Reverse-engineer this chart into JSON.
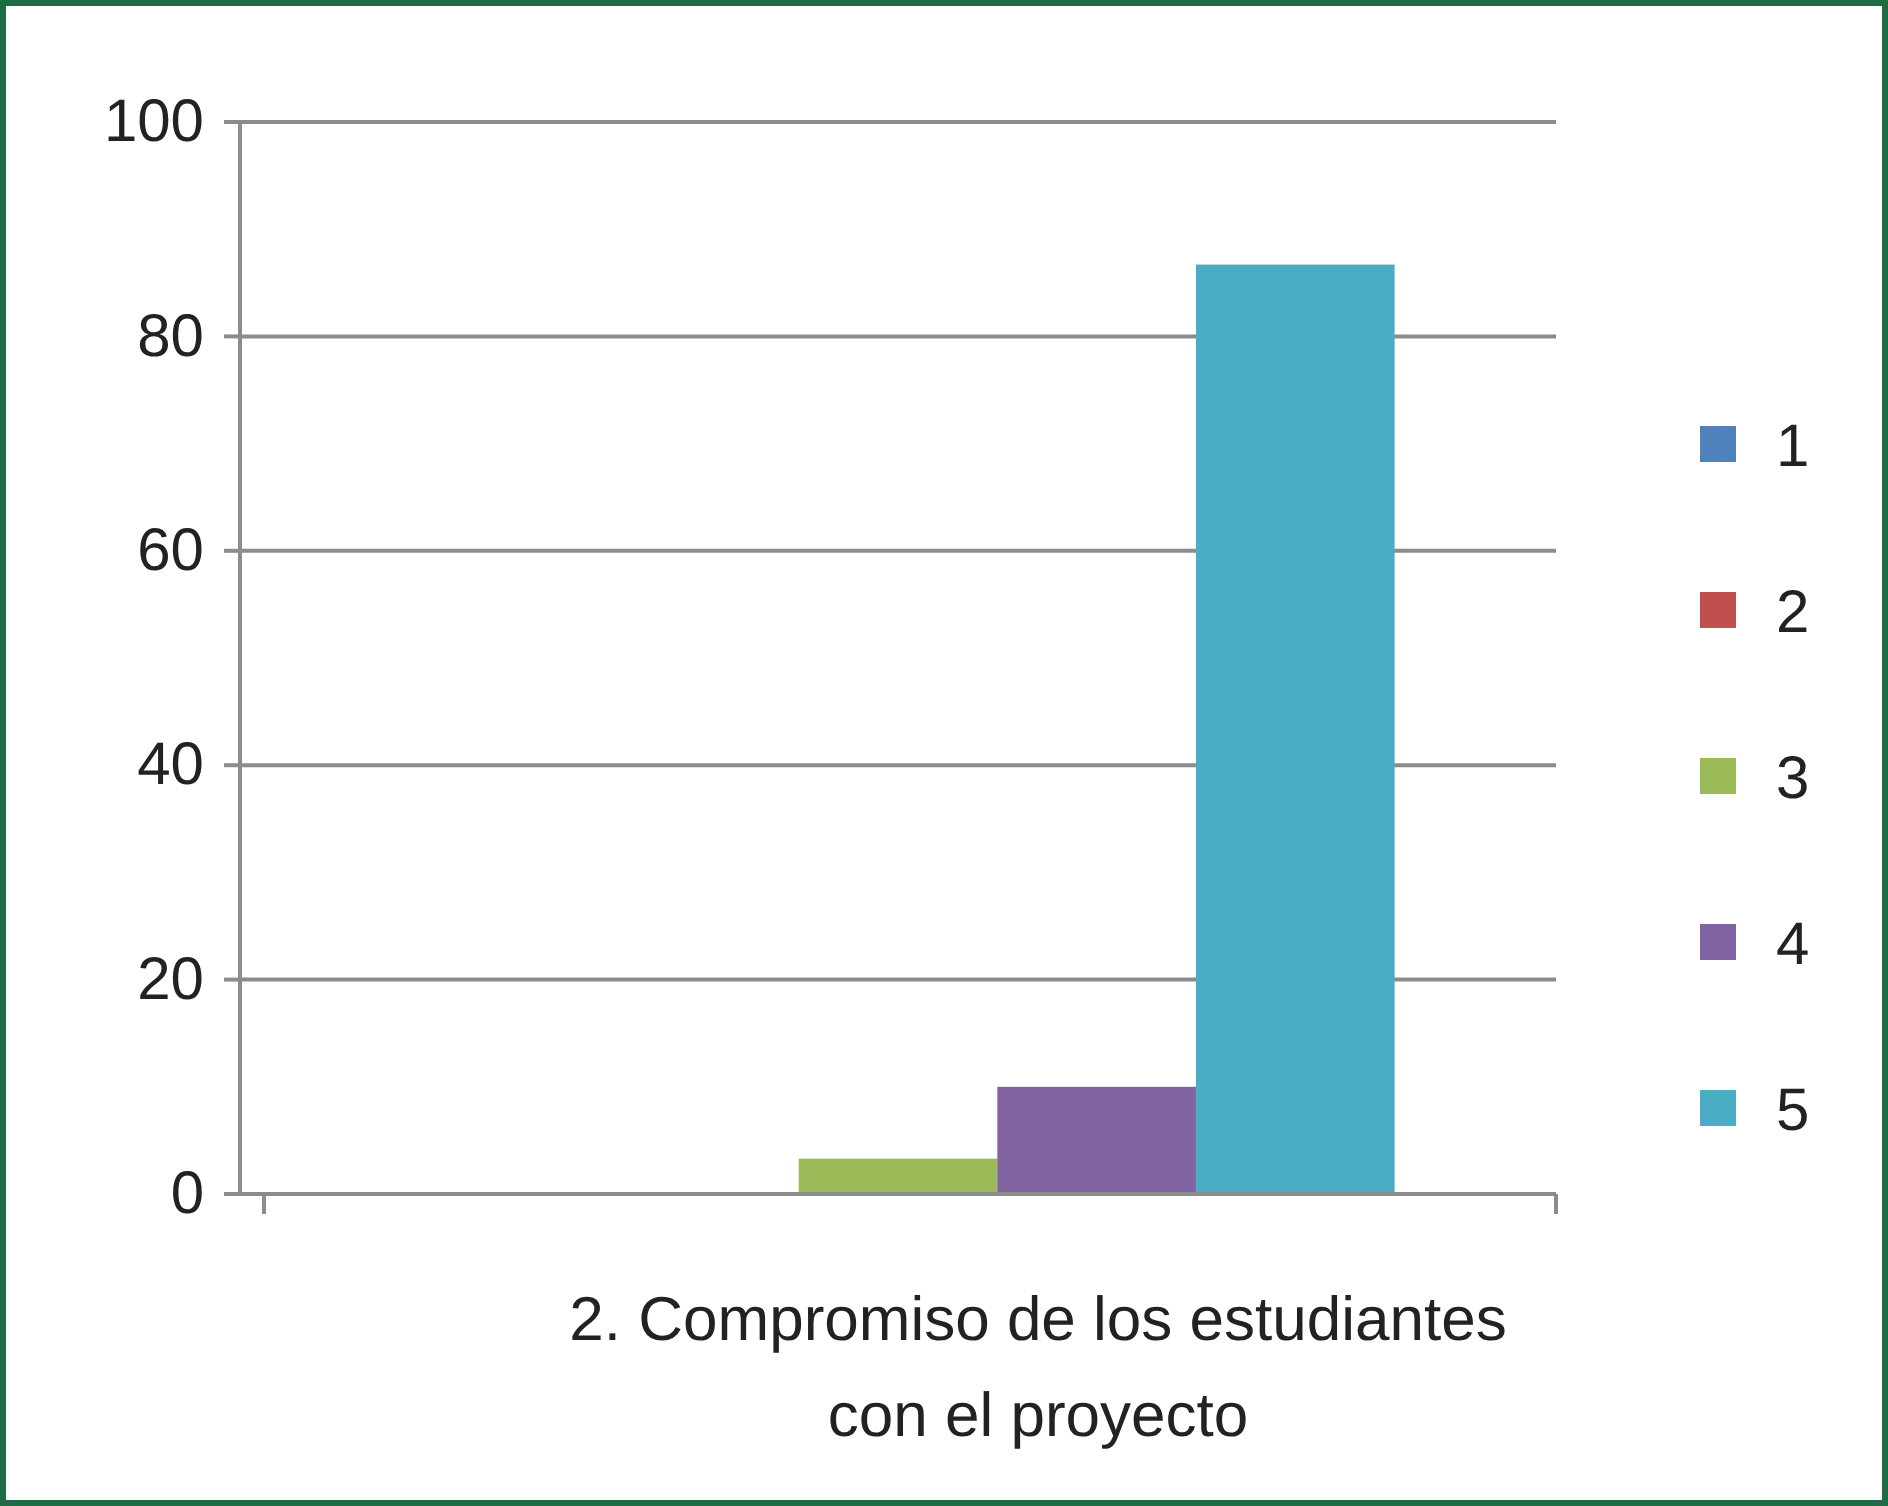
{
  "chart_data": {
    "type": "bar",
    "categories": [
      "2. Compromiso de los estudiantes con el proyecto"
    ],
    "series": [
      {
        "name": "1",
        "color": "#4f81bd",
        "values": [
          0
        ]
      },
      {
        "name": "2",
        "color": "#c0504d",
        "values": [
          0
        ]
      },
      {
        "name": "3",
        "color": "#9bbb59",
        "values": [
          3.3
        ]
      },
      {
        "name": "4",
        "color": "#8064a2",
        "values": [
          10
        ]
      },
      {
        "name": "5",
        "color": "#4bacc6",
        "values": [
          86.7
        ]
      }
    ],
    "ylim": [
      0,
      100
    ],
    "yticks": [
      0,
      20,
      40,
      60,
      80,
      100
    ],
    "grid": "y",
    "legend": "right"
  }
}
